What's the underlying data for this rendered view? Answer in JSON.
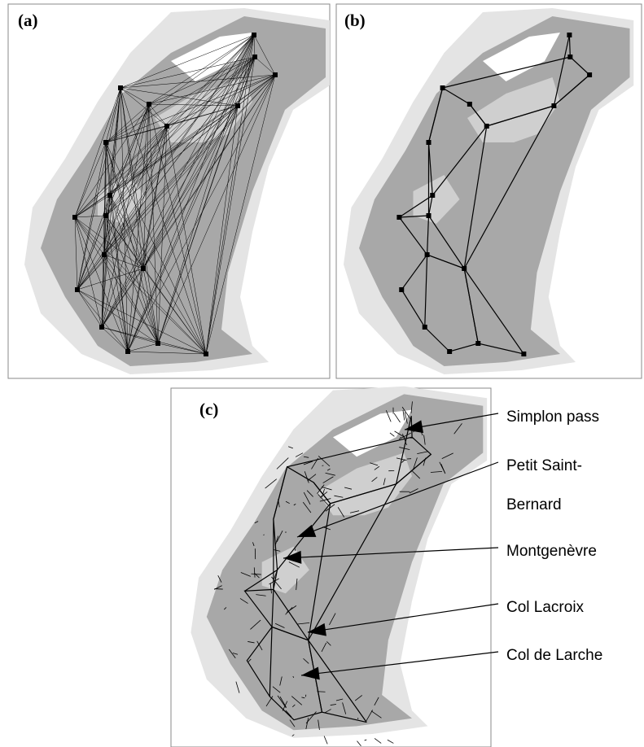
{
  "panels": [
    {
      "label": "(a)"
    },
    {
      "label": "(b)"
    },
    {
      "label": "(c)"
    }
  ],
  "annotations": [
    {
      "lines": [
        "Simplon pass"
      ]
    },
    {
      "lines": [
        "Petit  Saint-",
        "Bernard"
      ]
    },
    {
      "lines": [
        "Montgenèvre"
      ]
    },
    {
      "lines": [
        "Col Lacroix"
      ]
    },
    {
      "lines": [
        "Col de Larche"
      ]
    }
  ]
}
